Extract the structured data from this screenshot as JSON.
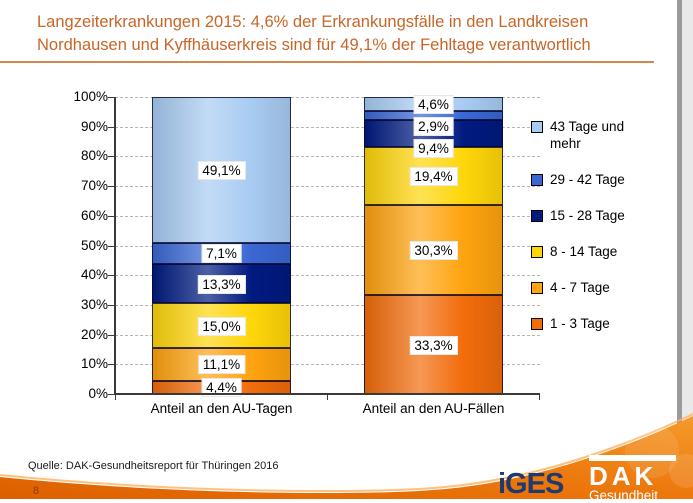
{
  "title": {
    "lines": [
      "Langzeiterkrankungen 2015: 4,6% der Erkrankungsfälle in den Landkreisen",
      "Nordhausen und Kyffhäuserkreis sind für 49,1% der Fehltage verantwortlich"
    ]
  },
  "chart_data": {
    "type": "bar",
    "stacked": true,
    "orientation": "vertical",
    "categories": [
      "Anteil an den AU-Tagen",
      "Anteil an den AU-Fällen"
    ],
    "series": [
      {
        "name": "1 - 3 Tage",
        "color": "#f26c0a",
        "values": [
          4.4,
          33.3
        ],
        "value_labels": [
          "4,4%",
          "33,3%"
        ]
      },
      {
        "name": "4 - 7 Tage",
        "color": "#ffa30f",
        "values": [
          11.1,
          30.3
        ],
        "value_labels": [
          "11,1%",
          "30,3%"
        ]
      },
      {
        "name": "8 - 14 Tage",
        "color": "#ffd60a",
        "values": [
          15.0,
          19.4
        ],
        "value_labels": [
          "15,0%",
          "19,4%"
        ]
      },
      {
        "name": "15 - 28 Tage",
        "color": "#001a80",
        "values": [
          13.3,
          9.4
        ],
        "value_labels": [
          "13,3%",
          "9,4%"
        ]
      },
      {
        "name": "29 - 42 Tage",
        "color": "#3a67d4",
        "values": [
          7.1,
          2.9
        ],
        "value_labels": [
          "7,1%",
          "2,9%"
        ]
      },
      {
        "name": "43 Tage und mehr",
        "color": "#a8cbf2",
        "values": [
          49.1,
          4.6
        ],
        "value_labels": [
          "49,1%",
          "4,6%"
        ]
      }
    ],
    "ylim": [
      0,
      100
    ],
    "yticks": [
      "0%",
      "10%",
      "20%",
      "30%",
      "40%",
      "50%",
      "60%",
      "70%",
      "80%",
      "90%",
      "100%"
    ],
    "grid": "horizontal-dashed",
    "legend_position": "right"
  },
  "footer": {
    "source": "Quelle: DAK-Gesundheitsreport für Thüringen 2016",
    "page_number": "8"
  },
  "logos": {
    "iges": "iGES",
    "dak": "DAK",
    "dak_sub": "Gesundheit"
  },
  "colors": {
    "title_text": "#c76628",
    "title_rule": "#d0884e",
    "swoosh_dark": "#dd5f00",
    "swoosh_light": "#f59a2a"
  }
}
